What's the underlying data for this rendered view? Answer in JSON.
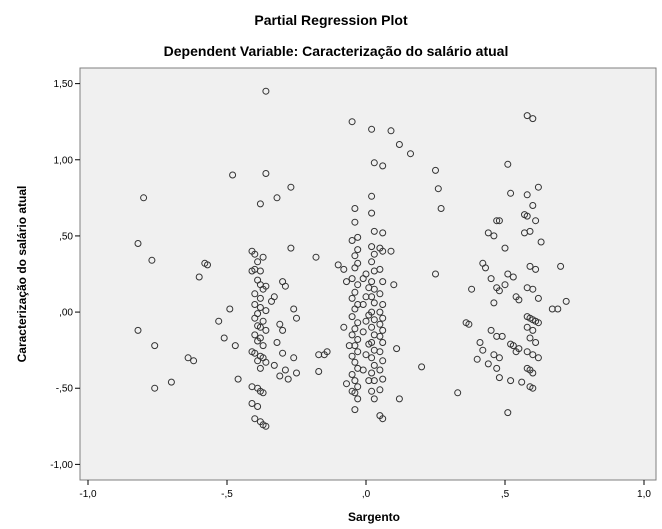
{
  "chart_data": {
    "type": "scatter",
    "title": "Partial Regression Plot",
    "subtitle": "Dependent Variable: Caracterização do salário atual",
    "xlabel": "Sargento",
    "ylabel": "Caracterização do salário atual",
    "xlim": [
      -1.0,
      1.0
    ],
    "ylim": [
      -1.05,
      1.55
    ],
    "x_ticks": [
      -1.0,
      -0.5,
      0.0,
      0.5,
      1.0
    ],
    "x_tick_labels": [
      "-1,0",
      "-,5",
      ",0",
      ",5",
      "1,0"
    ],
    "y_ticks": [
      -1.0,
      -0.5,
      0.0,
      0.5,
      1.0,
      1.5
    ],
    "y_tick_labels": [
      "-1,00",
      "-,50",
      ",00",
      ",50",
      "1,00",
      "1,50"
    ],
    "grid": false,
    "colors": {
      "plot_background": "#f0f0f0",
      "marker_edge": "#333333",
      "frame": "#7f7f7f"
    },
    "points": [
      [
        -0.8,
        0.75
      ],
      [
        -0.82,
        0.45
      ],
      [
        -0.77,
        0.34
      ],
      [
        -0.82,
        -0.12
      ],
      [
        -0.76,
        -0.22
      ],
      [
        -0.76,
        -0.5
      ],
      [
        -0.7,
        -0.46
      ],
      [
        -0.64,
        -0.3
      ],
      [
        -0.62,
        -0.32
      ],
      [
        -0.6,
        0.23
      ],
      [
        -0.58,
        0.32
      ],
      [
        -0.57,
        0.31
      ],
      [
        -0.53,
        -0.06
      ],
      [
        -0.51,
        -0.17
      ],
      [
        -0.49,
        0.02
      ],
      [
        -0.48,
        0.9
      ],
      [
        -0.47,
        -0.22
      ],
      [
        -0.46,
        -0.44
      ],
      [
        -0.36,
        1.45
      ],
      [
        -0.36,
        0.91
      ],
      [
        -0.38,
        0.71
      ],
      [
        -0.32,
        0.75
      ],
      [
        -0.27,
        0.82
      ],
      [
        -0.27,
        0.42
      ],
      [
        -0.41,
        0.4
      ],
      [
        -0.4,
        0.38
      ],
      [
        -0.39,
        0.33
      ],
      [
        -0.37,
        0.36
      ],
      [
        -0.4,
        0.28
      ],
      [
        -0.41,
        0.27
      ],
      [
        -0.38,
        0.27
      ],
      [
        -0.39,
        0.21
      ],
      [
        -0.38,
        0.18
      ],
      [
        -0.36,
        0.17
      ],
      [
        -0.37,
        0.15
      ],
      [
        -0.4,
        0.12
      ],
      [
        -0.38,
        0.09
      ],
      [
        -0.4,
        0.05
      ],
      [
        -0.38,
        0.03
      ],
      [
        -0.36,
        0.01
      ],
      [
        -0.39,
        -0.01
      ],
      [
        -0.4,
        -0.04
      ],
      [
        -0.37,
        -0.06
      ],
      [
        -0.39,
        -0.09
      ],
      [
        -0.38,
        -0.1
      ],
      [
        -0.36,
        -0.12
      ],
      [
        -0.4,
        -0.15
      ],
      [
        -0.38,
        -0.17
      ],
      [
        -0.39,
        -0.19
      ],
      [
        -0.37,
        -0.22
      ],
      [
        -0.41,
        -0.26
      ],
      [
        -0.4,
        -0.27
      ],
      [
        -0.38,
        -0.29
      ],
      [
        -0.37,
        -0.3
      ],
      [
        -0.39,
        -0.32
      ],
      [
        -0.36,
        -0.33
      ],
      [
        -0.38,
        -0.37
      ],
      [
        -0.41,
        -0.49
      ],
      [
        -0.39,
        -0.5
      ],
      [
        -0.38,
        -0.52
      ],
      [
        -0.37,
        -0.53
      ],
      [
        -0.41,
        -0.6
      ],
      [
        -0.39,
        -0.62
      ],
      [
        -0.4,
        -0.7
      ],
      [
        -0.38,
        -0.72
      ],
      [
        -0.37,
        -0.74
      ],
      [
        -0.36,
        -0.75
      ],
      [
        -0.33,
        0.1
      ],
      [
        -0.34,
        0.07
      ],
      [
        -0.3,
        0.2
      ],
      [
        -0.29,
        0.17
      ],
      [
        -0.31,
        -0.08
      ],
      [
        -0.3,
        -0.12
      ],
      [
        -0.32,
        -0.2
      ],
      [
        -0.3,
        -0.27
      ],
      [
        -0.33,
        -0.35
      ],
      [
        -0.29,
        -0.38
      ],
      [
        -0.31,
        -0.42
      ],
      [
        -0.28,
        -0.44
      ],
      [
        -0.26,
        0.02
      ],
      [
        -0.25,
        -0.04
      ],
      [
        -0.26,
        -0.3
      ],
      [
        -0.25,
        -0.4
      ],
      [
        -0.18,
        0.36
      ],
      [
        -0.17,
        -0.28
      ],
      [
        -0.15,
        -0.28
      ],
      [
        -0.17,
        -0.39
      ],
      [
        -0.14,
        -0.26
      ],
      [
        -0.1,
        0.31
      ],
      [
        -0.08,
        0.28
      ],
      [
        -0.07,
        0.2
      ],
      [
        -0.08,
        -0.1
      ],
      [
        -0.06,
        -0.22
      ],
      [
        -0.07,
        -0.47
      ],
      [
        -0.05,
        -0.52
      ],
      [
        -0.05,
        1.25
      ],
      [
        -0.04,
        0.68
      ],
      [
        -0.04,
        0.59
      ],
      [
        -0.03,
        0.49
      ],
      [
        -0.05,
        0.47
      ],
      [
        -0.03,
        0.41
      ],
      [
        -0.04,
        0.37
      ],
      [
        -0.03,
        0.32
      ],
      [
        -0.04,
        0.29
      ],
      [
        -0.05,
        0.22
      ],
      [
        -0.03,
        0.18
      ],
      [
        -0.04,
        0.13
      ],
      [
        -0.05,
        0.09
      ],
      [
        -0.03,
        0.05
      ],
      [
        -0.04,
        0.02
      ],
      [
        -0.05,
        -0.03
      ],
      [
        -0.03,
        -0.07
      ],
      [
        -0.04,
        -0.11
      ],
      [
        -0.05,
        -0.15
      ],
      [
        -0.03,
        -0.18
      ],
      [
        -0.04,
        -0.22
      ],
      [
        -0.03,
        -0.26
      ],
      [
        -0.05,
        -0.29
      ],
      [
        -0.04,
        -0.33
      ],
      [
        -0.03,
        -0.37
      ],
      [
        -0.05,
        -0.41
      ],
      [
        -0.04,
        -0.45
      ],
      [
        -0.03,
        -0.49
      ],
      [
        -0.04,
        -0.53
      ],
      [
        -0.03,
        -0.57
      ],
      [
        -0.04,
        -0.64
      ],
      [
        0.0,
        0.25
      ],
      [
        -0.01,
        0.22
      ],
      [
        0.01,
        0.16
      ],
      [
        0.0,
        0.1
      ],
      [
        -0.01,
        0.05
      ],
      [
        0.01,
        -0.02
      ],
      [
        0.0,
        -0.06
      ],
      [
        -0.01,
        -0.13
      ],
      [
        0.01,
        -0.21
      ],
      [
        0.0,
        -0.28
      ],
      [
        -0.01,
        -0.38
      ],
      [
        0.01,
        -0.45
      ],
      [
        0.02,
        1.2
      ],
      [
        0.03,
        0.98
      ],
      [
        0.02,
        0.76
      ],
      [
        0.02,
        0.65
      ],
      [
        0.03,
        0.53
      ],
      [
        0.02,
        0.43
      ],
      [
        0.03,
        0.38
      ],
      [
        0.02,
        0.33
      ],
      [
        0.03,
        0.27
      ],
      [
        0.02,
        0.2
      ],
      [
        0.03,
        0.15
      ],
      [
        0.02,
        0.1
      ],
      [
        0.03,
        0.06
      ],
      [
        0.02,
        0.0
      ],
      [
        0.03,
        -0.05
      ],
      [
        0.02,
        -0.1
      ],
      [
        0.03,
        -0.15
      ],
      [
        0.02,
        -0.2
      ],
      [
        0.03,
        -0.25
      ],
      [
        0.02,
        -0.3
      ],
      [
        0.03,
        -0.35
      ],
      [
        0.02,
        -0.4
      ],
      [
        0.03,
        -0.45
      ],
      [
        0.02,
        -0.52
      ],
      [
        0.03,
        -0.57
      ],
      [
        0.06,
        0.96
      ],
      [
        0.06,
        0.52
      ],
      [
        0.05,
        0.42
      ],
      [
        0.06,
        0.4
      ],
      [
        0.05,
        0.28
      ],
      [
        0.06,
        0.2
      ],
      [
        0.05,
        0.12
      ],
      [
        0.06,
        0.05
      ],
      [
        0.05,
        0.0
      ],
      [
        0.06,
        -0.04
      ],
      [
        0.05,
        -0.08
      ],
      [
        0.06,
        -0.12
      ],
      [
        0.05,
        -0.16
      ],
      [
        0.06,
        -0.2
      ],
      [
        0.05,
        -0.26
      ],
      [
        0.06,
        -0.32
      ],
      [
        0.05,
        -0.38
      ],
      [
        0.06,
        -0.44
      ],
      [
        0.05,
        -0.51
      ],
      [
        0.05,
        -0.68
      ],
      [
        0.06,
        -0.7
      ],
      [
        0.09,
        1.19
      ],
      [
        0.12,
        1.1
      ],
      [
        0.16,
        1.04
      ],
      [
        0.09,
        0.4
      ],
      [
        0.1,
        0.18
      ],
      [
        0.11,
        -0.24
      ],
      [
        0.12,
        -0.57
      ],
      [
        0.2,
        -0.36
      ],
      [
        0.25,
        0.93
      ],
      [
        0.26,
        0.81
      ],
      [
        0.27,
        0.68
      ],
      [
        0.25,
        0.25
      ],
      [
        0.33,
        -0.53
      ],
      [
        0.36,
        -0.07
      ],
      [
        0.37,
        -0.08
      ],
      [
        0.38,
        0.15
      ],
      [
        0.4,
        -0.31
      ],
      [
        0.42,
        0.32
      ],
      [
        0.43,
        0.29
      ],
      [
        0.41,
        -0.2
      ],
      [
        0.42,
        -0.25
      ],
      [
        0.44,
        0.52
      ],
      [
        0.45,
        0.22
      ],
      [
        0.46,
        0.06
      ],
      [
        0.45,
        -0.12
      ],
      [
        0.46,
        -0.28
      ],
      [
        0.44,
        -0.34
      ],
      [
        0.46,
        0.5
      ],
      [
        0.47,
        0.6
      ],
      [
        0.48,
        0.6
      ],
      [
        0.47,
        0.16
      ],
      [
        0.48,
        0.14
      ],
      [
        0.47,
        -0.16
      ],
      [
        0.48,
        -0.3
      ],
      [
        0.47,
        -0.37
      ],
      [
        0.48,
        -0.43
      ],
      [
        0.49,
        -0.16
      ],
      [
        0.5,
        0.42
      ],
      [
        0.5,
        0.18
      ],
      [
        0.51,
        0.97
      ],
      [
        0.52,
        0.78
      ],
      [
        0.51,
        0.25
      ],
      [
        0.53,
        0.23
      ],
      [
        0.52,
        -0.21
      ],
      [
        0.53,
        -0.22
      ],
      [
        0.52,
        -0.45
      ],
      [
        0.51,
        -0.66
      ],
      [
        0.54,
        0.1
      ],
      [
        0.55,
        0.08
      ],
      [
        0.55,
        -0.24
      ],
      [
        0.54,
        -0.26
      ],
      [
        0.56,
        -0.46
      ],
      [
        0.58,
        1.29
      ],
      [
        0.6,
        1.27
      ],
      [
        0.62,
        0.82
      ],
      [
        0.58,
        0.77
      ],
      [
        0.6,
        0.7
      ],
      [
        0.57,
        0.64
      ],
      [
        0.58,
        0.63
      ],
      [
        0.61,
        0.6
      ],
      [
        0.57,
        0.52
      ],
      [
        0.59,
        0.53
      ],
      [
        0.63,
        0.46
      ],
      [
        0.59,
        0.3
      ],
      [
        0.61,
        0.28
      ],
      [
        0.58,
        0.16
      ],
      [
        0.6,
        0.15
      ],
      [
        0.62,
        0.09
      ],
      [
        0.58,
        -0.03
      ],
      [
        0.59,
        -0.04
      ],
      [
        0.6,
        -0.05
      ],
      [
        0.61,
        -0.06
      ],
      [
        0.62,
        -0.07
      ],
      [
        0.58,
        -0.1
      ],
      [
        0.6,
        -0.12
      ],
      [
        0.59,
        -0.17
      ],
      [
        0.61,
        -0.2
      ],
      [
        0.58,
        -0.26
      ],
      [
        0.6,
        -0.28
      ],
      [
        0.62,
        -0.3
      ],
      [
        0.58,
        -0.37
      ],
      [
        0.59,
        -0.38
      ],
      [
        0.6,
        -0.4
      ],
      [
        0.59,
        -0.49
      ],
      [
        0.6,
        -0.5
      ],
      [
        0.67,
        0.02
      ],
      [
        0.69,
        0.02
      ],
      [
        0.7,
        0.3
      ],
      [
        0.72,
        0.07
      ]
    ]
  }
}
